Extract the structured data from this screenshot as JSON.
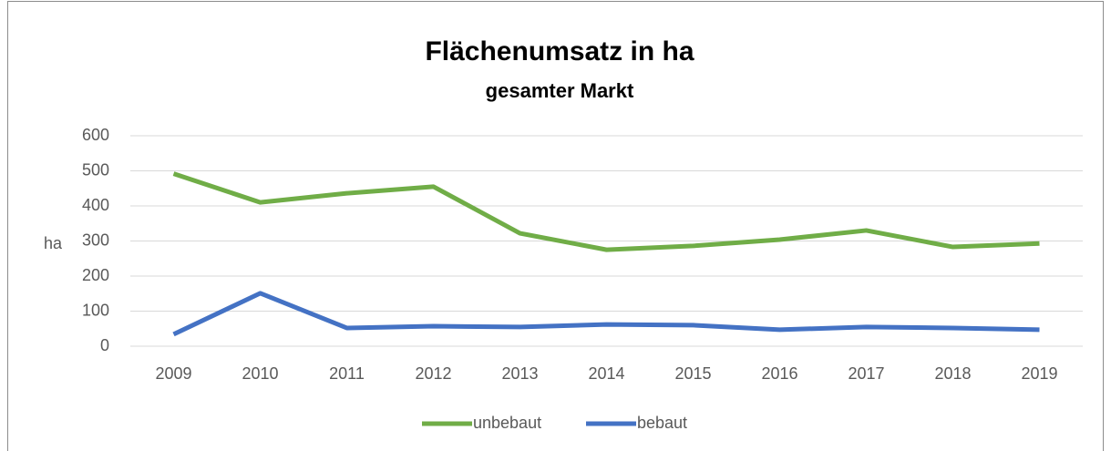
{
  "chart_data": {
    "type": "line",
    "title": "Flächenumsatz in ha",
    "subtitle": "gesamter Markt",
    "y_label": "ha",
    "categories": [
      "2009",
      "2010",
      "2011",
      "2012",
      "2013",
      "2014",
      "2015",
      "2016",
      "2017",
      "2018",
      "2019"
    ],
    "series": [
      {
        "name": "unbebaut",
        "color": "#70ad47",
        "values": [
          492,
          410,
          436,
          455,
          322,
          275,
          286,
          304,
          330,
          283,
          293
        ]
      },
      {
        "name": "bebaut",
        "color": "#4472c4",
        "values": [
          34,
          151,
          52,
          57,
          55,
          62,
          60,
          47,
          55,
          52,
          47
        ]
      }
    ],
    "ylim": [
      0,
      600
    ],
    "yticks": [
      0,
      100,
      200,
      300,
      400,
      500,
      600
    ],
    "grid": true,
    "legend": "bottom"
  }
}
